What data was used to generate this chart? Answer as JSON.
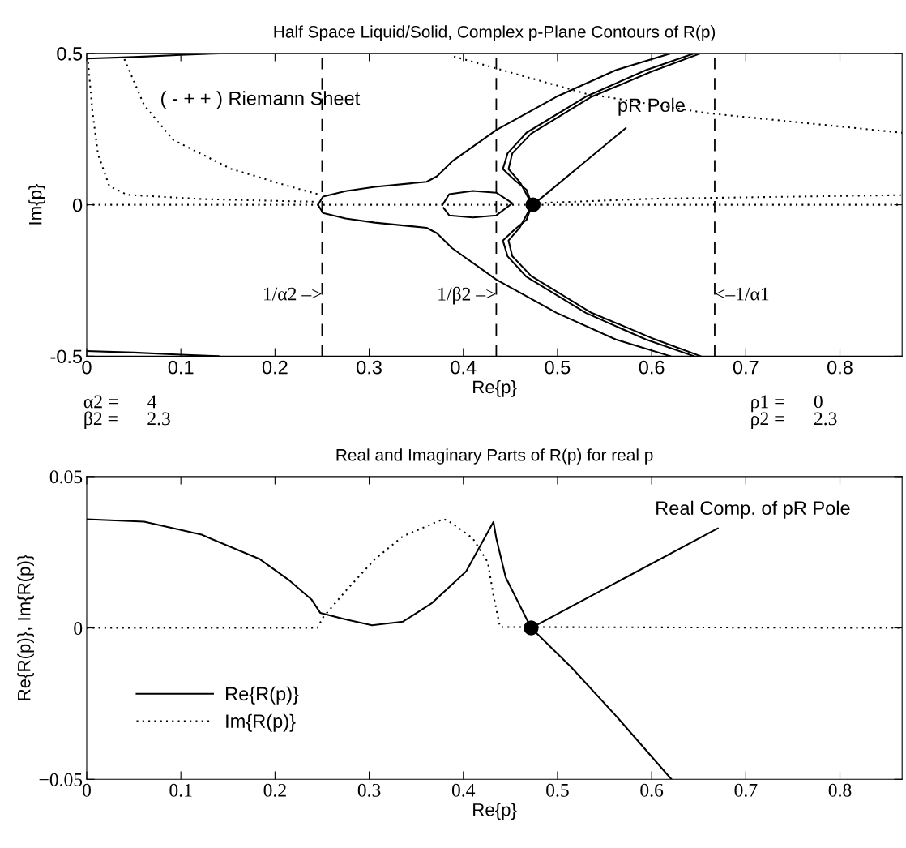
{
  "chart_data": [
    {
      "type": "line",
      "title": "Half Space Liquid/Solid, Complex p-Plane Contours of R(p)",
      "xlabel": "Re{p}",
      "ylabel": "Im{p}",
      "xlim": [
        0,
        0.866
      ],
      "ylim": [
        -0.5,
        0.5
      ],
      "xticks": [
        0,
        0.1,
        0.2,
        0.3,
        0.4,
        0.5,
        0.6,
        0.7,
        0.8
      ],
      "yticks": [
        -0.5,
        0,
        0.5
      ],
      "grid": false,
      "legend": false,
      "series": [
        {
          "color": "#000000",
          "line_style": "solid",
          "x": [
            0,
            0.05,
            0.1,
            0.14
          ],
          "values": [
            0.483,
            0.488,
            0.495,
            0.5
          ]
        },
        {
          "color": "#000000",
          "line_style": "solid",
          "x": [
            0,
            0.05,
            0.1,
            0.14
          ],
          "values": [
            -0.483,
            -0.488,
            -0.495,
            -0.5
          ]
        },
        {
          "color": "#000000",
          "line_style": "solid",
          "x": [
            0.62,
            0.562,
            0.499,
            0.435,
            0.388,
            0.372,
            0.361,
            0.306,
            0.275,
            0.251,
            0.2456,
            0.251,
            0.275,
            0.306,
            0.361,
            0.372,
            0.388,
            0.435,
            0.499,
            0.562,
            0.62
          ],
          "values": [
            0.5,
            0.445,
            0.357,
            0.247,
            0.143,
            0.094,
            0.076,
            0.059,
            0.045,
            0.027,
            0,
            -0.027,
            -0.045,
            -0.059,
            -0.076,
            -0.094,
            -0.143,
            -0.247,
            -0.357,
            -0.445,
            -0.5
          ]
        },
        {
          "color": "#000000",
          "line_style": "solid",
          "x": [
            0.645,
            0.594,
            0.53,
            0.467,
            0.447,
            0.442,
            0.455,
            0.467,
            0.473,
            0.467,
            0.455,
            0.442,
            0.447,
            0.467,
            0.53,
            0.594,
            0.645
          ],
          "values": [
            0.5,
            0.445,
            0.357,
            0.238,
            0.17,
            0.118,
            0.08,
            0.05,
            0,
            -0.05,
            -0.08,
            -0.118,
            -0.17,
            -0.238,
            -0.357,
            -0.445,
            -0.5
          ]
        },
        {
          "color": "#000000",
          "line_style": "solid",
          "x": [
            0.652,
            0.6,
            0.535,
            0.472,
            0.452,
            0.448,
            0.46,
            0.473,
            0.46,
            0.448,
            0.452,
            0.472,
            0.535,
            0.6,
            0.652
          ],
          "values": [
            0.5,
            0.44,
            0.355,
            0.235,
            0.17,
            0.118,
            0.075,
            0,
            -0.075,
            -0.118,
            -0.17,
            -0.235,
            -0.355,
            -0.44,
            -0.5
          ]
        },
        {
          "color": "#000000",
          "line_style": "solid",
          "x": [
            0.378,
            0.385,
            0.41,
            0.435,
            0.452,
            0.435,
            0.41,
            0.385,
            0.379
          ],
          "values": [
            0,
            0.035,
            0.046,
            0.04,
            0.005,
            -0.035,
            -0.042,
            -0.035,
            -0.01
          ]
        },
        {
          "color": "#000000",
          "line_style": "dotted",
          "x": [
            0.0015,
            0.006,
            0.012,
            0.024,
            0.043,
            0.122,
            0.214,
            0.246
          ],
          "values": [
            0.471,
            0.31,
            0.167,
            0.062,
            0.033,
            0.019,
            0.012,
            0.01
          ]
        },
        {
          "color": "#000000",
          "line_style": "dotted",
          "x": [
            0.04,
            0.061,
            0.092,
            0.153,
            0.214,
            0.248
          ],
          "values": [
            0.481,
            0.329,
            0.214,
            0.119,
            0.062,
            0.033
          ]
        },
        {
          "color": "#000000",
          "line_style": "dotted",
          "x": [
            0.39,
            0.53,
            0.658,
            0.866
          ],
          "values": [
            0.49,
            0.367,
            0.303,
            0.238
          ]
        },
        {
          "color": "#000000",
          "line_style": "dotted",
          "x": [
            0,
            0.866
          ],
          "values": [
            0,
            0
          ]
        },
        {
          "color": "#000000",
          "line_style": "dotted",
          "x": [
            0.474,
            0.6,
            0.866
          ],
          "values": [
            0.005,
            0.02,
            0.032
          ]
        },
        {
          "type": "scatter",
          "marker": "circle",
          "color": "#000000",
          "x": [
            0.474
          ],
          "values": [
            0
          ]
        }
      ],
      "ref_lines": [
        {
          "axis": "x",
          "value": 0.25,
          "label": "1/α2 –>",
          "color": "#000000",
          "line_style": "dashed"
        },
        {
          "axis": "x",
          "value": 0.435,
          "label": "1/β2 –>",
          "color": "#000000",
          "line_style": "dashed"
        },
        {
          "axis": "x",
          "value": 0.667,
          "label": "<–1/α1",
          "color": "#000000",
          "line_style": "dashed"
        }
      ],
      "annotations": [
        "( - + + ) Riemann Sheet",
        {
          "text": "pR Pole",
          "x": 0.474,
          "y": 0
        },
        "α2 =      4",
        "β2 =      2.3",
        "ρ1 =      0",
        "ρ2 =      2.3"
      ]
    },
    {
      "type": "line",
      "title": "Real and Imaginary Parts of R(p) for real p",
      "xlabel": "Re{p}",
      "ylabel": "Re{R(p)}, Im{R(p)}",
      "xlim": [
        0,
        0.866
      ],
      "ylim": [
        -0.05,
        0.05
      ],
      "xticks": [
        0,
        0.1,
        0.2,
        0.3,
        0.4,
        0.5,
        0.6,
        0.7,
        0.8
      ],
      "yticks": [
        {
          "value": -0.05,
          "label": "−0.05"
        },
        0,
        0.05
      ],
      "grid": false,
      "legend": "bottom left",
      "series": [
        {
          "name": "Re{R(p)}",
          "color": "#000000",
          "line_style": "solid",
          "x": [
            0,
            0.061,
            0.122,
            0.184,
            0.214,
            0.239,
            0.248,
            0.275,
            0.303,
            0.336,
            0.367,
            0.403,
            0.432,
            0.435,
            0.445,
            0.472,
            0.515,
            0.562,
            0.621
          ],
          "values": [
            0.0359,
            0.0351,
            0.0308,
            0.0227,
            0.016,
            0.0093,
            0.005,
            0.0028,
            0.0009,
            0.0021,
            0.0083,
            0.0187,
            0.035,
            0.0296,
            0.0167,
            0,
            -0.0131,
            -0.029,
            -0.05
          ]
        },
        {
          "name": "Im{R(p)}",
          "color": "#000000",
          "line_style": "dotted",
          "x": [
            0,
            0.245,
            0.251,
            0.275,
            0.306,
            0.336,
            0.379,
            0.388,
            0.41,
            0.426,
            0.432,
            0.439,
            0.866
          ],
          "values": [
            0,
            0,
            0.0035,
            0.0122,
            0.0227,
            0.0303,
            0.036,
            0.0346,
            0.0296,
            0.0217,
            0.0107,
            0.0003,
            0
          ]
        },
        {
          "type": "scatter",
          "marker": "circle",
          "color": "#000000",
          "x": [
            0.472
          ],
          "values": [
            0
          ]
        }
      ],
      "annotations": [
        {
          "text": "Real Comp. of pR Pole",
          "x": 0.472,
          "y": 0
        }
      ]
    }
  ]
}
